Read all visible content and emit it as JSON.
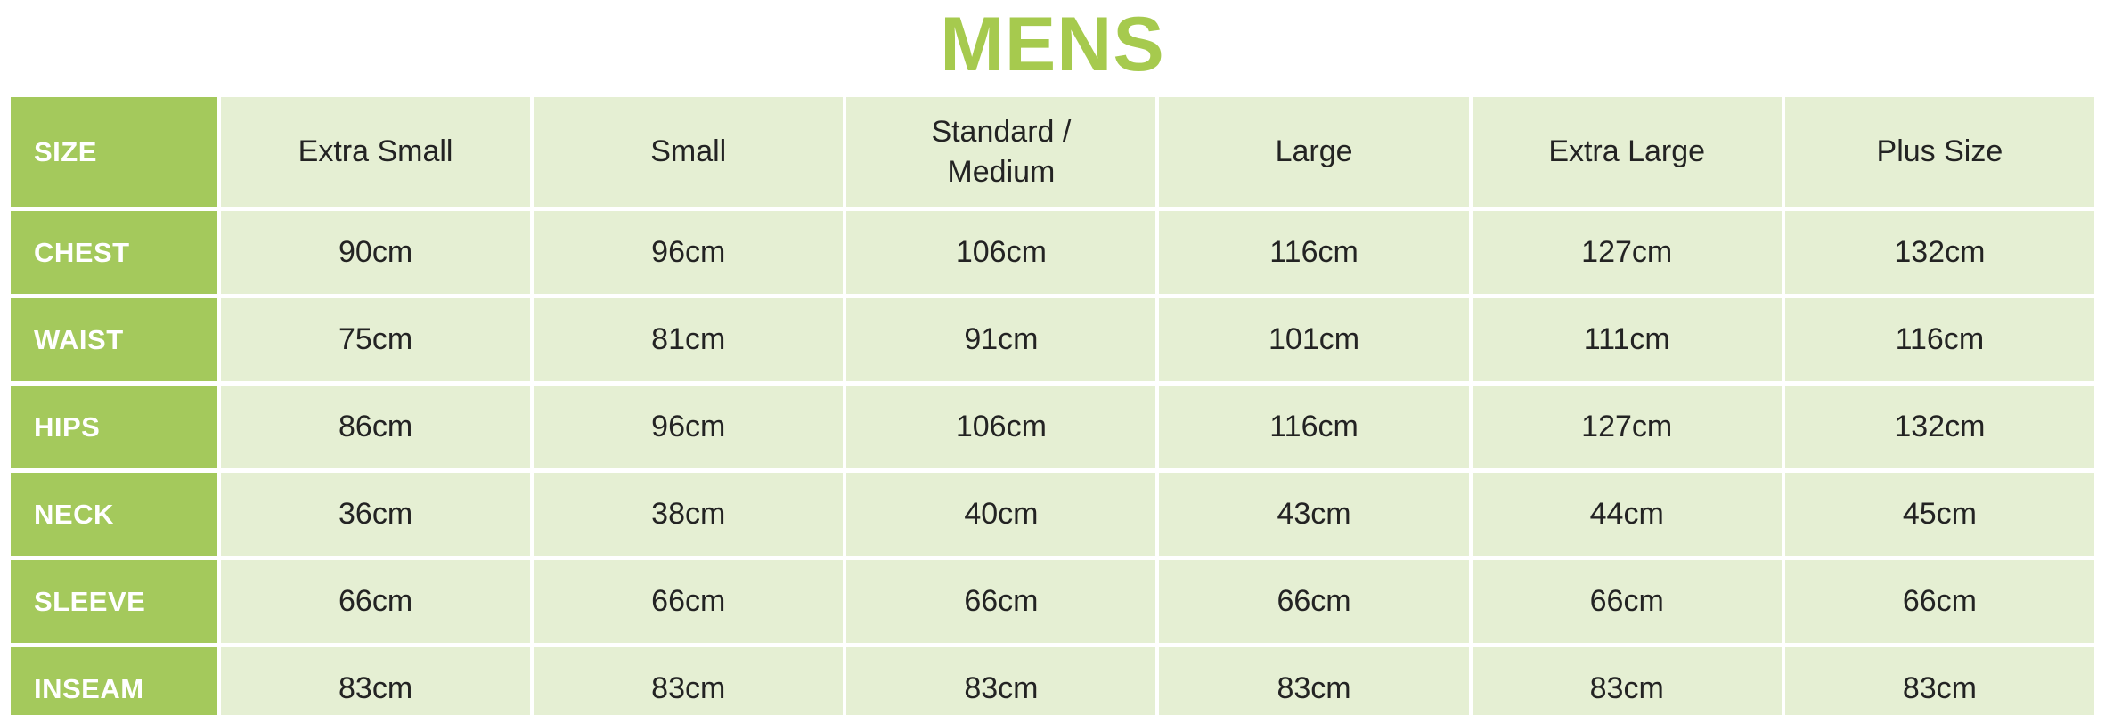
{
  "title": "MENS",
  "colors": {
    "title_green": "#a6ca4e",
    "accent_green": "#a4c95c",
    "cell_bg": "#e5efd3",
    "body_text": "#232323",
    "header_text": "#ffffff",
    "page_bg": "#ffffff"
  },
  "table": {
    "corner_label": "SIZE",
    "column_headers": [
      "Extra Small",
      "Small",
      "Standard / Medium",
      "Large",
      "Extra Large",
      "Plus Size"
    ],
    "rows": [
      {
        "label": "CHEST",
        "values": [
          "90cm",
          "96cm",
          "106cm",
          "116cm",
          "127cm",
          "132cm"
        ]
      },
      {
        "label": "WAIST",
        "values": [
          "75cm",
          "81cm",
          "91cm",
          "101cm",
          "111cm",
          "116cm"
        ]
      },
      {
        "label": "HIPS",
        "values": [
          "86cm",
          "96cm",
          "106cm",
          "116cm",
          "127cm",
          "132cm"
        ]
      },
      {
        "label": "NECK",
        "values": [
          "36cm",
          "38cm",
          "40cm",
          "43cm",
          "44cm",
          "45cm"
        ]
      },
      {
        "label": "SLEEVE",
        "values": [
          "66cm",
          "66cm",
          "66cm",
          "66cm",
          "66cm",
          "66cm"
        ]
      },
      {
        "label": "INSEAM",
        "values": [
          "83cm",
          "83cm",
          "83cm",
          "83cm",
          "83cm",
          "83cm"
        ]
      }
    ]
  }
}
